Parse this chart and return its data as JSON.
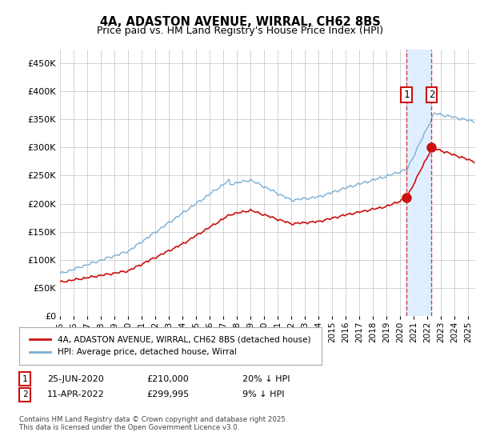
{
  "title_line1": "4A, ADASTON AVENUE, WIRRAL, CH62 8BS",
  "title_line2": "Price paid vs. HM Land Registry's House Price Index (HPI)",
  "hpi_color": "#7bafd4",
  "price_color": "#cc1111",
  "marker_color": "#cc1111",
  "shade_color": "#ddeeff",
  "bg_color": "#ffffff",
  "grid_color": "#cccccc",
  "vline_color": "#cc1111",
  "annotation1": {
    "label": "1",
    "date_str": "25-JUN-2020",
    "price_str": "£210,000",
    "note": "20% ↓ HPI"
  },
  "annotation2": {
    "label": "2",
    "date_str": "11-APR-2022",
    "price_str": "£299,995",
    "note": "9% ↓ HPI"
  },
  "legend_line1": "4A, ADASTON AVENUE, WIRRAL, CH62 8BS (detached house)",
  "legend_line2": "HPI: Average price, detached house, Wirral",
  "footer": "Contains HM Land Registry data © Crown copyright and database right 2025.\nThis data is licensed under the Open Government Licence v3.0.",
  "ylim": [
    0,
    475000
  ],
  "yticks": [
    0,
    50000,
    100000,
    150000,
    200000,
    250000,
    300000,
    350000,
    400000,
    450000
  ],
  "sale1_t": 2020.458,
  "sale1_y": 210000,
  "sale2_t": 2022.292,
  "sale2_y": 299995,
  "xlim_left": 1995,
  "xlim_right": 2025.5
}
